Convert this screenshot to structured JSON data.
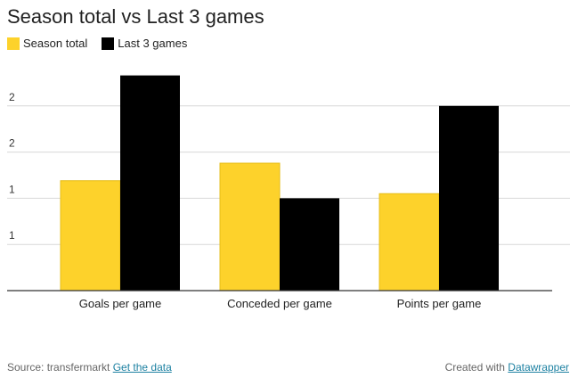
{
  "chart_data": {
    "type": "bar",
    "title": "Season total vs Last 3 games",
    "xlabel": "",
    "ylabel": "",
    "categories": [
      "Goals per game",
      "Conceded per game",
      "Points per game"
    ],
    "series": [
      {
        "name": "Season total",
        "color": "#fdd22b",
        "values": [
          1.19,
          1.38,
          1.05
        ]
      },
      {
        "name": "Last 3 games",
        "color": "#000000",
        "values": [
          2.33,
          1.0,
          2.0
        ]
      }
    ],
    "ylim": [
      0,
      2.5
    ],
    "yticks": [
      0.5,
      1.0,
      1.5,
      2.0
    ],
    "ytick_labels": [
      "1",
      "1",
      "2",
      "2"
    ],
    "grid": true,
    "legend_position": "top-left"
  },
  "footer": {
    "source_prefix": "Source: transfermarkt",
    "source_link": "Get the data",
    "credit_prefix": "Created with",
    "credit_link": "Datawrapper"
  }
}
